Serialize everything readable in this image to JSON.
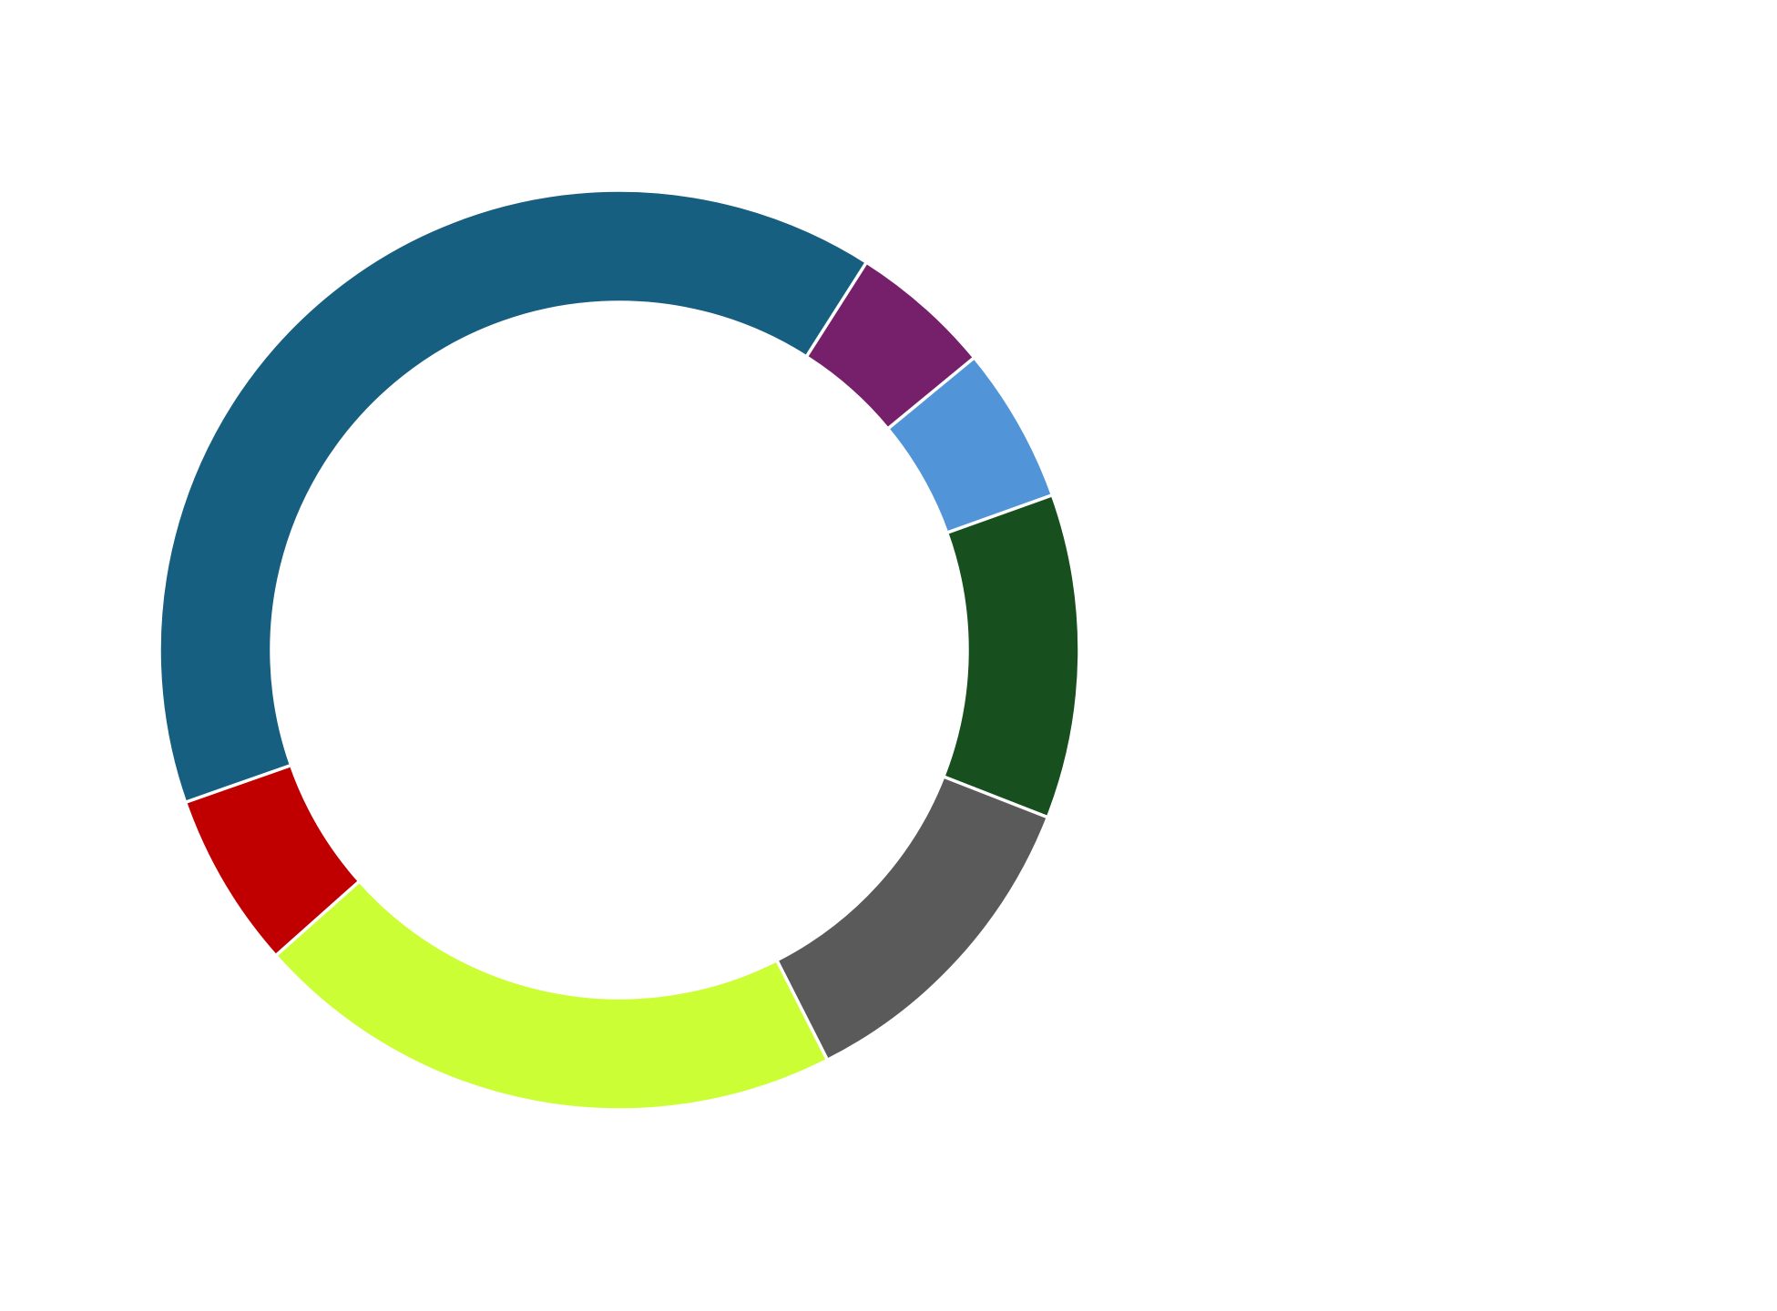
{
  "chart_data": {
    "type": "pie",
    "variant": "donut",
    "title": "",
    "start_angle_clockwise_from_top_deg": 32.5,
    "direction": "clockwise",
    "slices": [
      {
        "value": 5.0,
        "color": "#761f6a"
      },
      {
        "value": 5.5,
        "color": "#5195d8"
      },
      {
        "value": 11.4,
        "color": "#17501e"
      },
      {
        "value": 11.6,
        "color": "#5a5a5a"
      },
      {
        "value": 20.9,
        "color": "#cbfe34"
      },
      {
        "value": 6.2,
        "color": "#c00000"
      },
      {
        "value": 39.4,
        "color": "#175f80"
      }
    ],
    "legend": "none"
  }
}
